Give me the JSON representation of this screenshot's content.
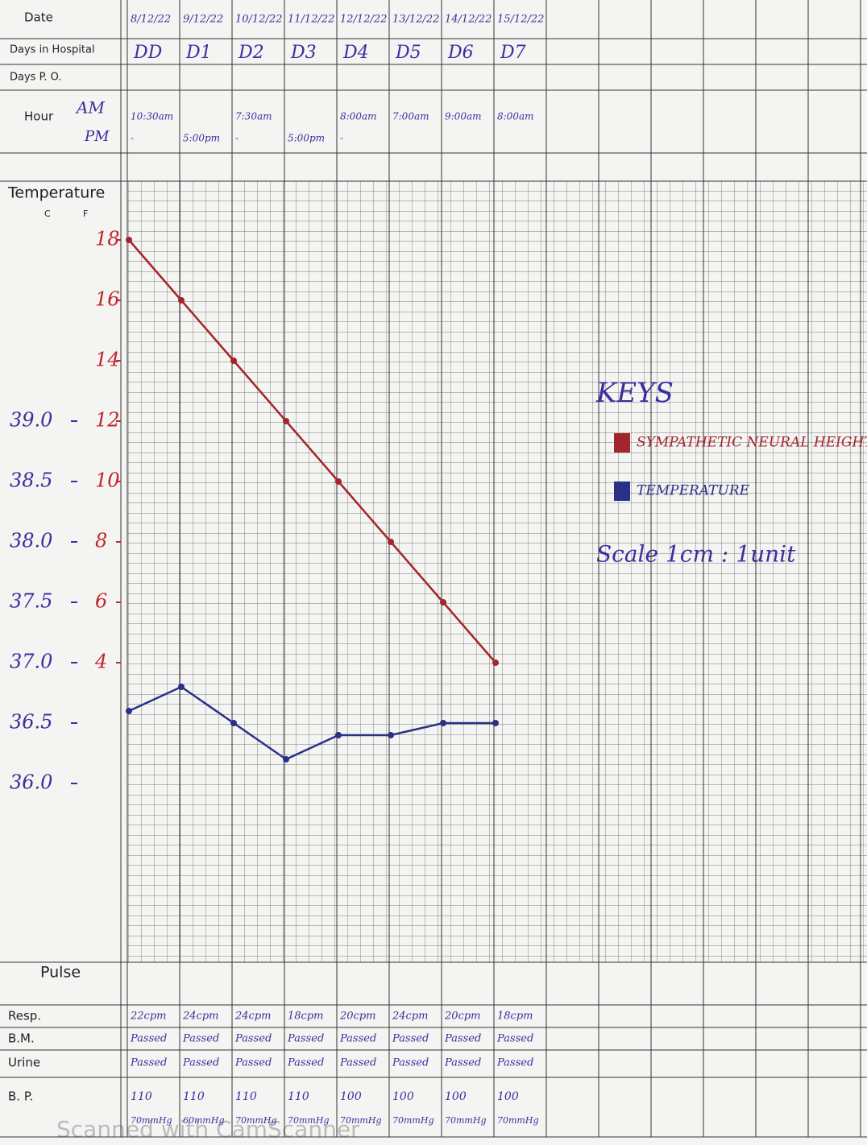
{
  "form": {
    "labels": {
      "date": "Date",
      "days": "Days in Hospital",
      "po": "Days P. O.",
      "hour": "Hour",
      "am": "AM",
      "pm": "PM",
      "temperature": "Temperature",
      "c": "C",
      "f": "F",
      "pulse": "Pulse",
      "resp": "Resp.",
      "bm": "B.M.",
      "urine": "Urine",
      "bp": "B. P."
    },
    "rows": {
      "date": [
        "8/12/22",
        "9/12/22",
        "10/12/22",
        "11/12/22",
        "12/12/22",
        "13/12/22",
        "14/12/22",
        "15/12/22"
      ],
      "am": [
        "10:30am",
        null,
        "7:30am",
        null,
        "8:00am",
        "7:00am",
        "9:00am",
        "8:00am"
      ],
      "pm": [
        "-",
        "5:00pm",
        "-",
        "5:00pm",
        "-",
        null,
        null,
        null
      ],
      "resp": [
        "22cpm",
        "24cpm",
        "24cpm",
        "18cpm",
        "20cpm",
        "24cpm",
        "20cpm",
        "18cpm"
      ],
      "bm": [
        "Passed",
        "Passed",
        "Passed",
        "Passed",
        "Passed",
        "Passed",
        "Passed",
        "Passed"
      ],
      "urine": [
        "Passed",
        "Passed",
        "Passed",
        "Passed",
        "Passed",
        "Passed",
        "Passed",
        "Passed"
      ],
      "bp_sys": [
        "110",
        "110",
        "110",
        "110",
        "100",
        "100",
        "100",
        "100"
      ],
      "bp_dia": [
        "70mmHg",
        "60mmHg",
        "70mmHg",
        "70mmHg",
        "70mmHg",
        "70mmHg",
        "70mmHg",
        "70mmHg"
      ]
    }
  },
  "chart_data": {
    "type": "line",
    "categories": [
      "DD",
      "D1",
      "D2",
      "D3",
      "D4",
      "D5",
      "D6",
      "D7"
    ],
    "key_title": "KEYS",
    "scale_note": "Scale 1cm : 1unit",
    "ylim": [
      35,
      40.5
    ],
    "yticks": [
      {
        "value": 39,
        "label": "39.0"
      },
      {
        "value": 38.5,
        "label": "38.5"
      },
      {
        "value": 38,
        "label": "38.0"
      },
      {
        "value": 37.5,
        "label": "37.5"
      },
      {
        "value": 37,
        "label": "37.0"
      },
      {
        "value": 36.5,
        "label": "36.5"
      },
      {
        "value": 36,
        "label": "36.0"
      }
    ],
    "y2lim": [
      -4,
      18
    ],
    "y2ticks": [
      18,
      16,
      14,
      12,
      10,
      8,
      6,
      4
    ],
    "series": [
      {
        "name": "SYMPATHETIC NEURAL HEIGHT",
        "color": "#a3262c",
        "axis": "y2",
        "values": [
          18,
          16,
          14,
          12,
          10,
          8,
          6,
          4
        ]
      },
      {
        "name": "TEMPERATURE",
        "color": "#2b2f86",
        "values": [
          36.6,
          36.8,
          36.5,
          36.2,
          36.4,
          36.4,
          36.5,
          36.5
        ]
      }
    ]
  },
  "watermark": "Scanned with CamScanner"
}
